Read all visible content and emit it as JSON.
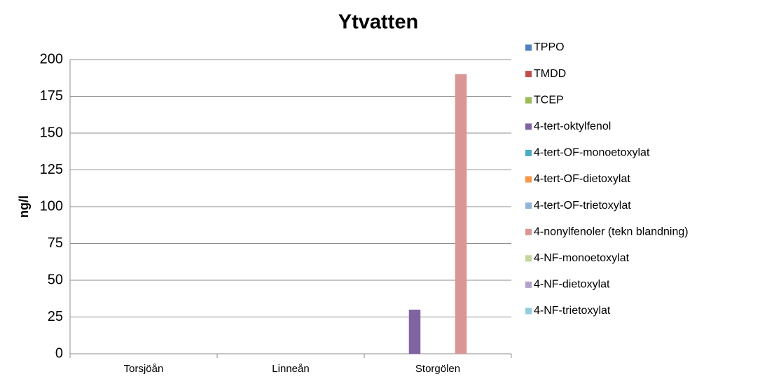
{
  "chart_data": {
    "type": "bar",
    "title": "Ytvatten",
    "y_label": "ng/l",
    "categories": [
      "Torsjöån",
      "Linneån",
      "Storgölen"
    ],
    "series": [
      {
        "name": "TPPO",
        "color": "#4f81bd",
        "values": [
          0,
          0,
          0
        ]
      },
      {
        "name": "TMDD",
        "color": "#c0504d",
        "values": [
          0,
          0,
          0
        ]
      },
      {
        "name": "TCEP",
        "color": "#9bbb59",
        "values": [
          0,
          0,
          0
        ]
      },
      {
        "name": "4-tert-oktylfenol",
        "color": "#8064a2",
        "values": [
          0,
          0,
          30
        ]
      },
      {
        "name": "4-tert-OF-monoetoxylat",
        "color": "#4bacc6",
        "values": [
          0,
          0,
          0
        ]
      },
      {
        "name": "4-tert-OF-dietoxylat",
        "color": "#f79646",
        "values": [
          0,
          0,
          0
        ]
      },
      {
        "name": "4-tert-OF-trietoxylat",
        "color": "#95b3d7",
        "values": [
          0,
          0,
          0
        ]
      },
      {
        "name": "4-nonylfenoler (tekn blandning)",
        "color": "#d99694",
        "values": [
          0,
          0,
          190
        ]
      },
      {
        "name": "4-NF-monoetoxylat",
        "color": "#c3d69b",
        "values": [
          0,
          0,
          0
        ]
      },
      {
        "name": "4-NF-dietoxylat",
        "color": "#b3a2c7",
        "values": [
          0,
          0,
          0
        ]
      },
      {
        "name": "4-NF-trietoxylat",
        "color": "#93cddd",
        "values": [
          0,
          0,
          0
        ]
      }
    ],
    "ylim": [
      0,
      200
    ],
    "yticks": [
      0,
      25,
      50,
      75,
      100,
      125,
      150,
      175,
      200
    ],
    "grid": true,
    "legend": "right"
  }
}
